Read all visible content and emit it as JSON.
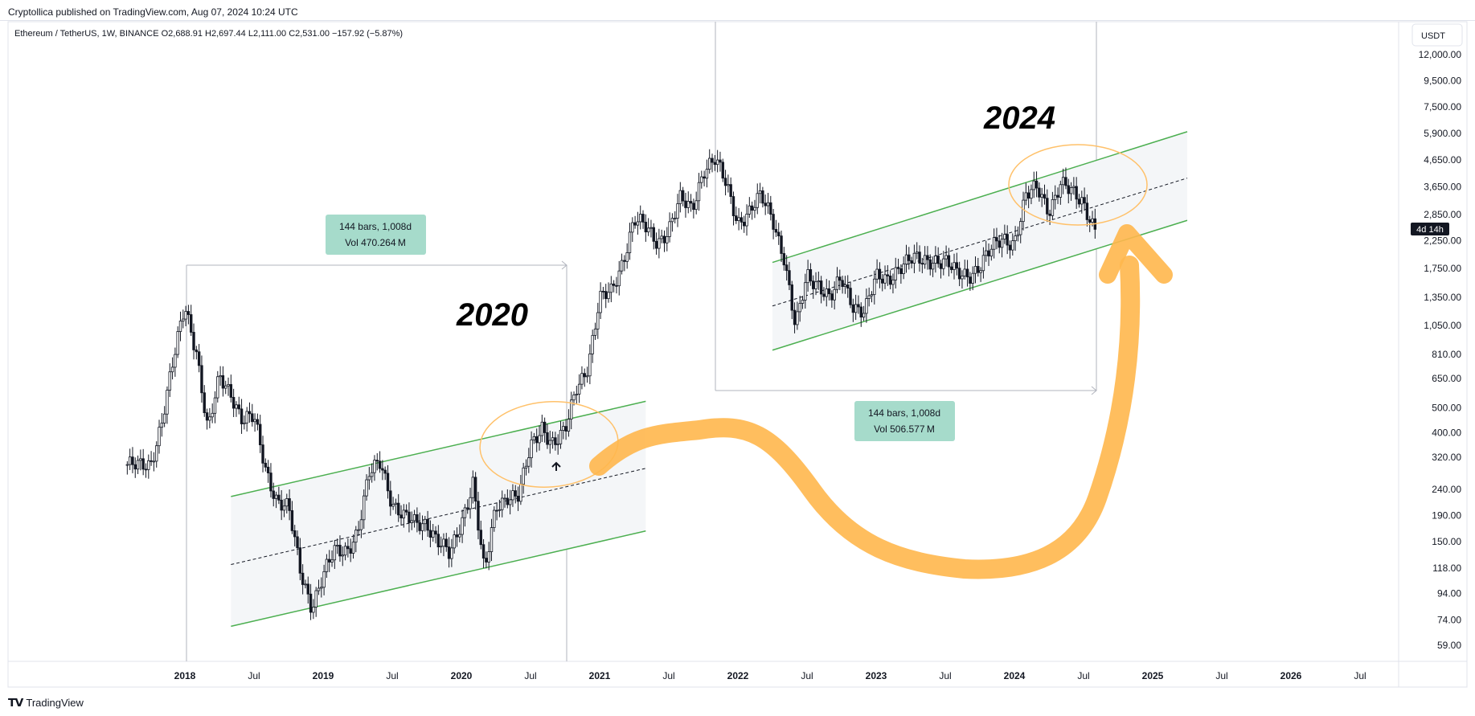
{
  "header": {
    "publisher_line": "Cryptollica published on TradingView.com, Aug 07, 2024 10:24 UTC"
  },
  "footer": {
    "logo": "𝗧𝗩",
    "brand": "TradingView"
  },
  "chart_data": {
    "type": "candlestick",
    "symbol_line": "Ethereum / TetherUS, 1W, BINANCE  O2,688.91  H2,697.44  L2,111.00  C2,531.00  −157.92 (−5.87%)",
    "currency": "USDT",
    "countdown": "4d 14h",
    "y_scale": "log",
    "y_ticks": [
      "12,000.00",
      "9,500.00",
      "7,500.00",
      "5,900.00",
      "4,650.00",
      "3,650.00",
      "2,850.00",
      "2,250.00",
      "1,750.00",
      "1,350.00",
      "1,050.00",
      "810.00",
      "650.00",
      "500.00",
      "400.00",
      "320.00",
      "240.00",
      "190.00",
      "150.00",
      "118.00",
      "94.00",
      "74.00",
      "59.00"
    ],
    "x_ticks": [
      {
        "label": "2018",
        "bold": true
      },
      {
        "label": "Jul",
        "bold": false
      },
      {
        "label": "2019",
        "bold": true
      },
      {
        "label": "Jul",
        "bold": false
      },
      {
        "label": "2020",
        "bold": true
      },
      {
        "label": "Jul",
        "bold": false
      },
      {
        "label": "2021",
        "bold": true
      },
      {
        "label": "Jul",
        "bold": false
      },
      {
        "label": "2022",
        "bold": true
      },
      {
        "label": "Jul",
        "bold": false
      },
      {
        "label": "2023",
        "bold": true
      },
      {
        "label": "Jul",
        "bold": false
      },
      {
        "label": "2024",
        "bold": true
      },
      {
        "label": "Jul",
        "bold": false
      },
      {
        "label": "2025",
        "bold": true
      },
      {
        "label": "Jul",
        "bold": false
      },
      {
        "label": "2026",
        "bold": true
      },
      {
        "label": "Jul",
        "bold": false
      }
    ],
    "price_path": [
      [
        "2017-08",
        300
      ],
      [
        "2017-09",
        290
      ],
      [
        "2017-10",
        300
      ],
      [
        "2017-11",
        450
      ],
      [
        "2017-12",
        750
      ],
      [
        "2018-01",
        1250
      ],
      [
        "2018-02",
        850
      ],
      [
        "2018-03",
        400
      ],
      [
        "2018-04",
        650
      ],
      [
        "2018-05",
        580
      ],
      [
        "2018-06",
        450
      ],
      [
        "2018-07",
        450
      ],
      [
        "2018-08",
        290
      ],
      [
        "2018-09",
        220
      ],
      [
        "2018-10",
        200
      ],
      [
        "2018-11",
        115
      ],
      [
        "2018-12",
        85
      ],
      [
        "2019-01",
        110
      ],
      [
        "2019-02",
        135
      ],
      [
        "2019-03",
        140
      ],
      [
        "2019-04",
        165
      ],
      [
        "2019-05",
        270
      ],
      [
        "2019-06",
        310
      ],
      [
        "2019-07",
        215
      ],
      [
        "2019-08",
        185
      ],
      [
        "2019-09",
        175
      ],
      [
        "2019-10",
        180
      ],
      [
        "2019-11",
        150
      ],
      [
        "2019-12",
        130
      ],
      [
        "2020-01",
        180
      ],
      [
        "2020-02",
        260
      ],
      [
        "2020-03",
        110
      ],
      [
        "2020-04",
        205
      ],
      [
        "2020-05",
        230
      ],
      [
        "2020-06",
        225
      ],
      [
        "2020-07",
        345
      ],
      [
        "2020-08",
        430
      ],
      [
        "2020-09",
        360
      ],
      [
        "2020-10",
        395
      ],
      [
        "2020-11",
        610
      ],
      [
        "2020-12",
        740
      ],
      [
        "2021-01",
        1300
      ],
      [
        "2021-02",
        1420
      ],
      [
        "2021-03",
        1900
      ],
      [
        "2021-04",
        2700
      ],
      [
        "2021-05",
        2500
      ],
      [
        "2021-06",
        2250
      ],
      [
        "2021-07",
        2500
      ],
      [
        "2021-08",
        3200
      ],
      [
        "2021-09",
        3000
      ],
      [
        "2021-10",
        4300
      ],
      [
        "2021-11",
        4600
      ],
      [
        "2021-12",
        3700
      ],
      [
        "2022-01",
        2700
      ],
      [
        "2022-02",
        2900
      ],
      [
        "2022-03",
        3300
      ],
      [
        "2022-04",
        2800
      ],
      [
        "2022-05",
        1950
      ],
      [
        "2022-06",
        1000
      ],
      [
        "2022-07",
        1650
      ],
      [
        "2022-08",
        1550
      ],
      [
        "2022-09",
        1320
      ],
      [
        "2022-10",
        1570
      ],
      [
        "2022-11",
        1280
      ],
      [
        "2022-12",
        1200
      ],
      [
        "2023-01",
        1580
      ],
      [
        "2023-02",
        1600
      ],
      [
        "2023-03",
        1800
      ],
      [
        "2023-04",
        1870
      ],
      [
        "2023-05",
        1870
      ],
      [
        "2023-06",
        1930
      ],
      [
        "2023-07",
        1850
      ],
      [
        "2023-08",
        1650
      ],
      [
        "2023-09",
        1670
      ],
      [
        "2023-10",
        1800
      ],
      [
        "2023-11",
        2050
      ],
      [
        "2023-12",
        2300
      ],
      [
        "2024-01",
        2250
      ],
      [
        "2024-02",
        3300
      ],
      [
        "2024-03",
        3600
      ],
      [
        "2024-04",
        3000
      ],
      [
        "2024-05",
        3750
      ],
      [
        "2024-06",
        3400
      ],
      [
        "2024-07",
        3200
      ],
      [
        "2024-08",
        2531
      ]
    ],
    "channel_2020": {
      "lower": [
        [
          "2018-05",
          70
        ],
        [
          "2021-05",
          165
        ]
      ],
      "mid": [
        [
          "2018-05",
          122
        ],
        [
          "2021-05",
          290
        ]
      ],
      "upper": [
        [
          "2018-05",
          225
        ],
        [
          "2021-05",
          530
        ]
      ]
    },
    "channel_2024": {
      "lower": [
        [
          "2022-04",
          840
        ],
        [
          "2025-04",
          2700
        ]
      ],
      "mid": [
        [
          "2022-04",
          1250
        ],
        [
          "2025-04",
          3950
        ]
      ],
      "upper": [
        [
          "2022-04",
          1850
        ],
        [
          "2025-04",
          6000
        ]
      ]
    },
    "annotations": [
      {
        "text": "2020",
        "style": "big"
      },
      {
        "text": "2024",
        "style": "big"
      }
    ],
    "measures": [
      {
        "line1": "144 bars, 1,008d",
        "line2": "Vol 470.264 M"
      },
      {
        "line1": "144 bars, 1,008d",
        "line2": "Vol 506.577 M"
      }
    ],
    "colors": {
      "channel_line": "#4caf50",
      "channel_fill": "#f4f6f8",
      "highlight": "#ffc16a",
      "arrow": "#ffb74d",
      "measure_box": "#a6dbcb",
      "countdown_bg": "#131722"
    }
  }
}
